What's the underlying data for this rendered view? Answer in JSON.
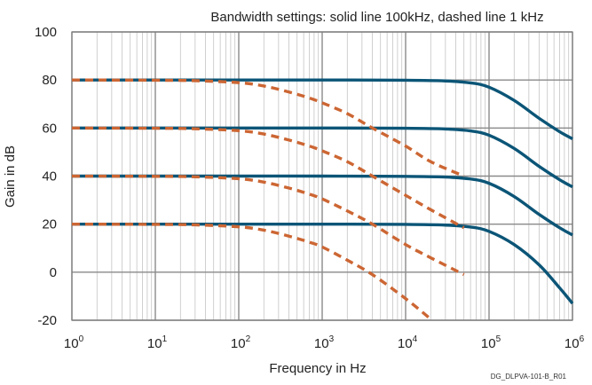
{
  "chart_data": {
    "type": "line",
    "title": "Bandwidth settings: solid line 100kHz, dashed line 1 kHz",
    "xlabel": "Frequency in Hz",
    "ylabel": "Gain in dB",
    "x_scale": "log",
    "xlim": [
      1,
      1000000
    ],
    "ylim": [
      -20,
      100
    ],
    "x_ticks": [
      {
        "base": "10",
        "exp": "0"
      },
      {
        "base": "10",
        "exp": "1"
      },
      {
        "base": "10",
        "exp": "2"
      },
      {
        "base": "10",
        "exp": "3"
      },
      {
        "base": "10",
        "exp": "4"
      },
      {
        "base": "10",
        "exp": "5"
      },
      {
        "base": "10",
        "exp": "6"
      }
    ],
    "y_ticks": [
      "-20",
      "0",
      "20",
      "40",
      "60",
      "80",
      "100"
    ],
    "grid": true,
    "colors": {
      "solid": "#0b5577",
      "dashed": "#cc6633",
      "grid_major": "#8a8a8a",
      "grid_minor": "#c4c4c4"
    },
    "series": [
      {
        "style": "solid",
        "x": [
          1,
          10,
          100,
          1000,
          10000,
          30000,
          60000,
          100000,
          200000,
          400000,
          700000,
          1000000
        ],
        "y": [
          80,
          80,
          80,
          80,
          79.9,
          79.6,
          78.8,
          77,
          71.5,
          64,
          58.5,
          55.5
        ]
      },
      {
        "style": "solid",
        "x": [
          1,
          10,
          100,
          1000,
          10000,
          30000,
          60000,
          100000,
          200000,
          400000,
          700000,
          1000000
        ],
        "y": [
          60,
          60,
          60,
          60,
          59.9,
          59.6,
          58.8,
          57,
          51.5,
          44,
          38.5,
          35.5
        ]
      },
      {
        "style": "solid",
        "x": [
          1,
          10,
          100,
          1000,
          10000,
          30000,
          60000,
          100000,
          200000,
          400000,
          700000,
          1000000
        ],
        "y": [
          40,
          40,
          40,
          40,
          39.9,
          39.6,
          38.8,
          37,
          31.5,
          24,
          18.5,
          15.5
        ]
      },
      {
        "style": "solid",
        "x": [
          1,
          10,
          100,
          1000,
          10000,
          30000,
          60000,
          100000,
          200000,
          400000,
          700000,
          1000000
        ],
        "y": [
          20,
          20,
          20,
          20,
          19.9,
          19.6,
          18.8,
          17,
          11.5,
          3,
          -6.5,
          -13
        ]
      },
      {
        "style": "dashed",
        "x": [
          1,
          10,
          30,
          100,
          200,
          400,
          700,
          1000,
          2000,
          4000,
          10000,
          20000,
          50000
        ],
        "y": [
          80,
          79.9,
          79.7,
          78.9,
          77.5,
          75,
          72.5,
          70.5,
          66,
          60,
          52.5,
          46,
          40
        ]
      },
      {
        "style": "dashed",
        "x": [
          1,
          10,
          30,
          100,
          200,
          400,
          700,
          1000,
          2000,
          4000,
          10000,
          20000,
          50000
        ],
        "y": [
          60,
          59.9,
          59.7,
          58.9,
          57.5,
          55,
          52.5,
          50.5,
          46,
          40,
          32,
          26,
          18.5
        ]
      },
      {
        "style": "dashed",
        "x": [
          1,
          10,
          30,
          100,
          200,
          400,
          700,
          1000,
          2000,
          4000,
          10000,
          20000,
          50000
        ],
        "y": [
          40,
          39.9,
          39.7,
          38.9,
          37.5,
          35,
          32.5,
          30.5,
          25.5,
          20,
          11.5,
          6,
          -1
        ]
      },
      {
        "style": "dashed",
        "x": [
          1,
          10,
          30,
          100,
          200,
          400,
          700,
          1000,
          2000,
          4000,
          10000,
          20000
        ],
        "y": [
          20,
          19.9,
          19.7,
          18.9,
          17.5,
          15,
          12.5,
          10.5,
          5,
          -1,
          -11,
          -19.5
        ]
      }
    ]
  },
  "document_code": "DG_DLPVA-101-B_R01"
}
